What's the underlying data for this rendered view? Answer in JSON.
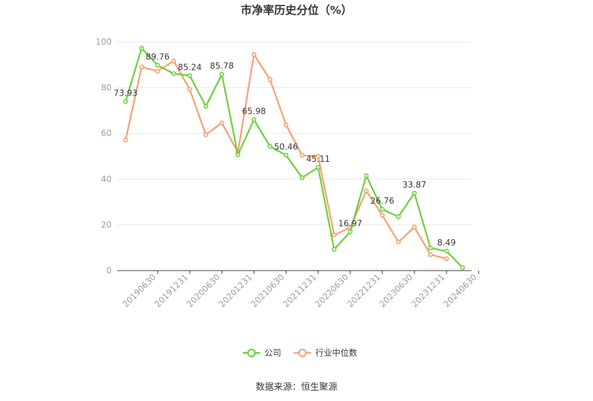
{
  "chart_data": {
    "type": "line",
    "title": "市净率历史分位（%）",
    "ylim": [
      0,
      100
    ],
    "yticks": [
      0,
      20,
      40,
      60,
      80,
      100
    ],
    "grid": true,
    "legend_placement": "bottom",
    "x_tick_labels": [
      "20190630",
      "20191231",
      "20200630",
      "20201231",
      "20210630",
      "20211231",
      "20220630",
      "20221231",
      "20230630",
      "20231231",
      "20240630"
    ],
    "x": [
      "20190630",
      "20190930",
      "20191231",
      "20200331",
      "20200630",
      "20200930",
      "20201231",
      "20210331",
      "20210630",
      "20210930",
      "20211231",
      "20220331",
      "20220630",
      "20220930",
      "20221231",
      "20230331",
      "20230630",
      "20230930",
      "20231231",
      "20240331",
      "20240630",
      "20240930"
    ],
    "series": [
      {
        "name": "公司",
        "color": "#66cc33",
        "values": [
          73.93,
          97.2,
          89.76,
          86.1,
          85.24,
          71.8,
          85.78,
          50.6,
          65.98,
          54.3,
          50.46,
          40.6,
          45.11,
          9.3,
          16.97,
          41.5,
          26.76,
          23.6,
          33.87,
          9.9,
          8.49,
          1.3
        ],
        "labels": [
          {
            "index": 0,
            "text": "73.93"
          },
          {
            "index": 2,
            "text": "89.76"
          },
          {
            "index": 4,
            "text": "85.24"
          },
          {
            "index": 6,
            "text": "85.78"
          },
          {
            "index": 8,
            "text": "65.98"
          },
          {
            "index": 10,
            "text": "50.46"
          },
          {
            "index": 12,
            "text": "45.11"
          },
          {
            "index": 14,
            "text": "16.97"
          },
          {
            "index": 16,
            "text": "26.76"
          },
          {
            "index": 18,
            "text": "33.87"
          },
          {
            "index": 20,
            "text": "8.49"
          }
        ]
      },
      {
        "name": "行业中位数",
        "color": "#f79a6b",
        "values": [
          57.1,
          89.0,
          87.2,
          91.6,
          79.2,
          59.4,
          64.6,
          51.7,
          94.5,
          83.5,
          63.7,
          50.4,
          49.9,
          15.6,
          18.8,
          34.9,
          24.2,
          12.5,
          19.0,
          7.0,
          5.2,
          null
        ]
      }
    ]
  },
  "footer": {
    "source": "数据来源：恒生聚源"
  }
}
